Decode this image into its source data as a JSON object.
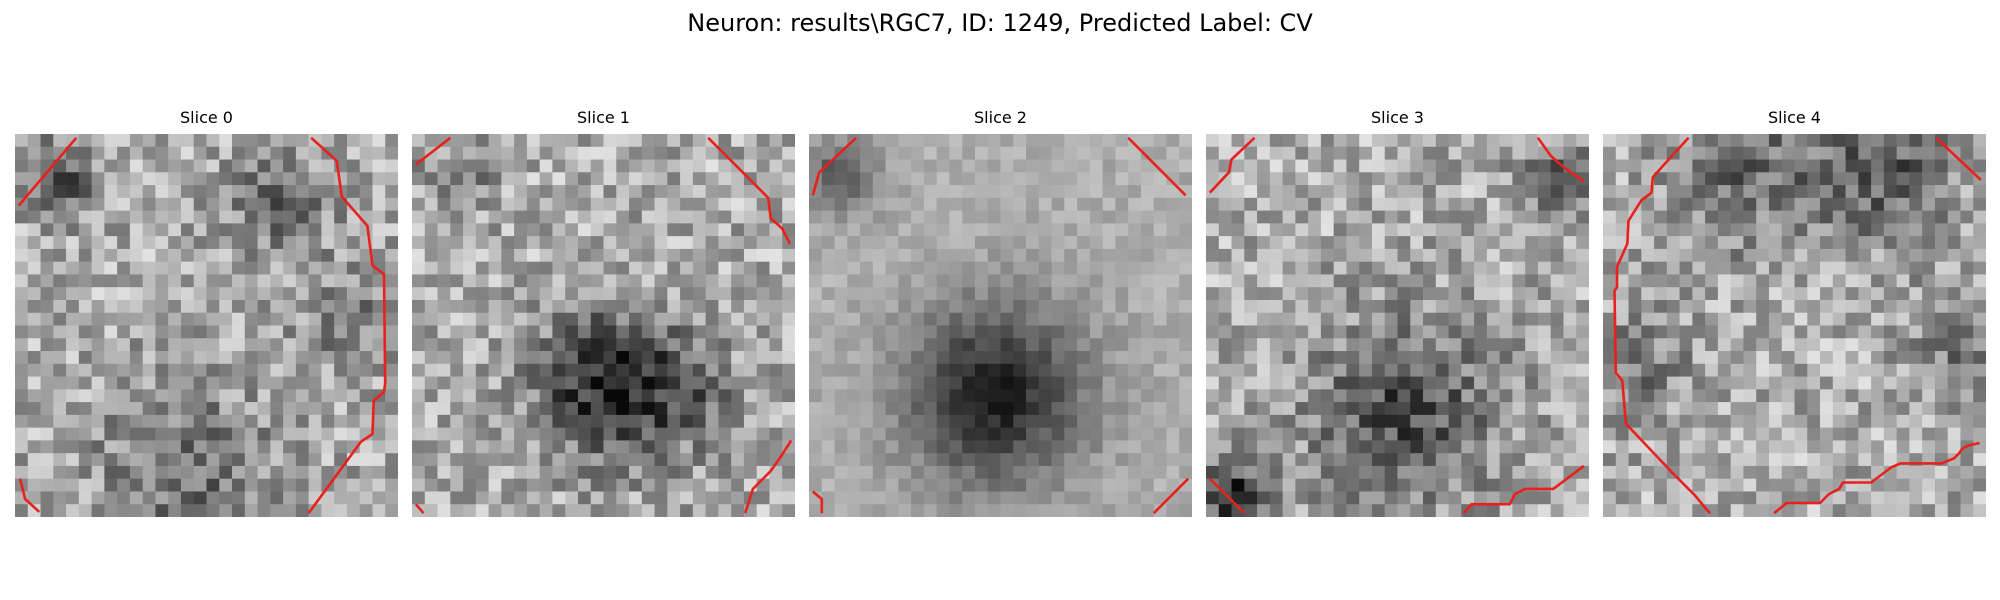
{
  "figure": {
    "title": "Neuron: results\\RGC7, ID: 1249, Predicted Label: CV"
  },
  "panels": [
    {
      "title": "Slice 0"
    },
    {
      "title": "Slice 1"
    },
    {
      "title": "Slice 2"
    },
    {
      "title": "Slice 3"
    },
    {
      "title": "Slice 4"
    }
  ],
  "colors": {
    "contour": "#e8211c"
  }
}
